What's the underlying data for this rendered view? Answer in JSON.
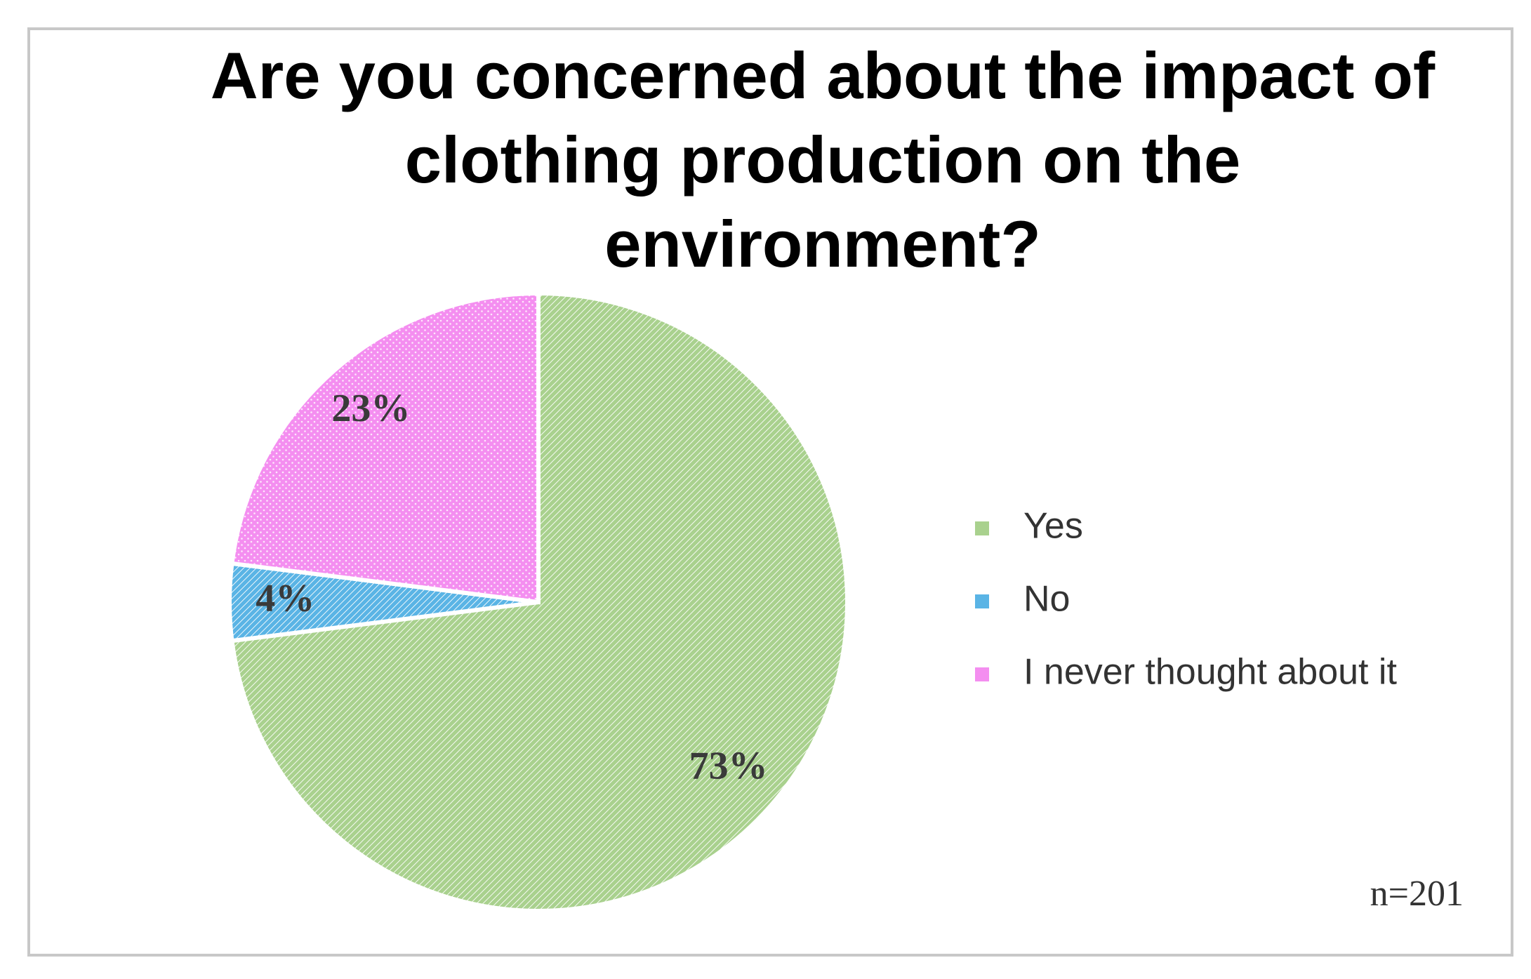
{
  "chart_data": {
    "type": "pie",
    "title": "Are you concerned about the impact of clothing production on the environment?",
    "categories": [
      "Yes",
      "No",
      "I never thought about it"
    ],
    "values": [
      73,
      4,
      23
    ],
    "value_labels": [
      "73%",
      "4%",
      "23%"
    ],
    "colors": [
      "#a9d18e",
      "#5ab4e5",
      "#f48ef0"
    ],
    "legend": "right",
    "annotation": "n=201"
  }
}
